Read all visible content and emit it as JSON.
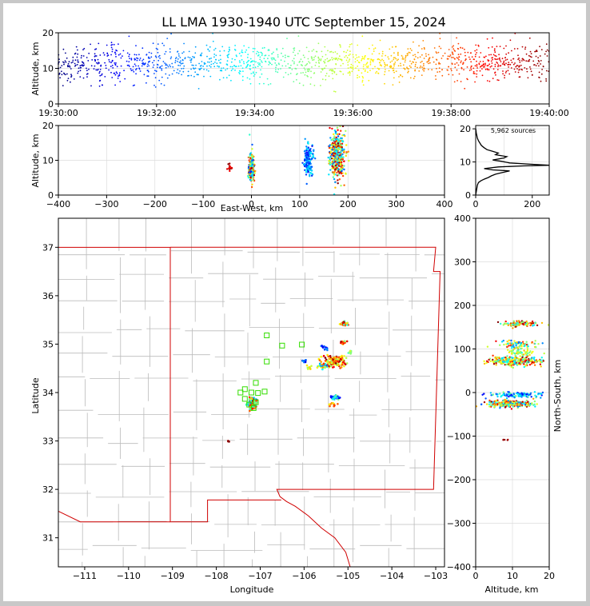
{
  "chart_data": {
    "type": "scatter",
    "title": "LL LMA 1930-1940 UTC September 15, 2024",
    "colormap": "jet (colored by time)",
    "panels": {
      "time_height": {
        "ylabel": "Altitude, km",
        "ylim": [
          0,
          20
        ],
        "yticks": [
          "0",
          "10",
          "20"
        ],
        "xlim": [
          "19:30:00",
          "19:40:00"
        ],
        "xticks": [
          "19:30:00",
          "19:32:00",
          "19:34:00",
          "19:36:00",
          "19:38:00",
          "19:40:00"
        ]
      },
      "ew_height": {
        "xlabel": "East-West, km",
        "ylabel": "Altitude, km",
        "xlim": [
          -400,
          400
        ],
        "ylim": [
          0,
          20
        ],
        "xticks": [
          "−400",
          "−300",
          "−200",
          "−100",
          "0",
          "100",
          "200",
          "300",
          "400"
        ],
        "yticks": [
          "0",
          "10",
          "20"
        ]
      },
      "histogram": {
        "annotation": "5,962 sources",
        "xlim": [
          0,
          260
        ],
        "ylim": [
          0,
          21
        ],
        "xticks": [
          "0",
          "200"
        ],
        "yticks": [
          "0",
          "10",
          "20"
        ],
        "profile": [
          [
            0,
            0
          ],
          [
            6,
            3
          ],
          [
            10,
            3.8
          ],
          [
            18,
            4.3
          ],
          [
            30,
            4.8
          ],
          [
            45,
            5.3
          ],
          [
            55,
            5.8
          ],
          [
            70,
            6.3
          ],
          [
            95,
            6.8
          ],
          [
            120,
            7.3
          ],
          [
            60,
            7.6
          ],
          [
            30,
            8
          ],
          [
            80,
            8.5
          ],
          [
            170,
            8.8
          ],
          [
            260,
            9
          ],
          [
            200,
            9.3
          ],
          [
            120,
            9.7
          ],
          [
            90,
            10.2
          ],
          [
            60,
            10.6
          ],
          [
            100,
            11.2
          ],
          [
            110,
            11.6
          ],
          [
            70,
            12.2
          ],
          [
            80,
            12.7
          ],
          [
            60,
            13.2
          ],
          [
            40,
            13.7
          ],
          [
            30,
            14.3
          ],
          [
            20,
            15
          ],
          [
            15,
            15.7
          ],
          [
            10,
            16.4
          ],
          [
            6,
            17.2
          ],
          [
            4,
            18
          ],
          [
            2,
            18.8
          ],
          [
            1,
            19.5
          ],
          [
            0,
            20
          ]
        ]
      },
      "plan_view": {
        "xlabel": "Longitude",
        "ylabel": "Latitude",
        "xlim": [
          -111.6,
          -102.8
        ],
        "ylim": [
          30.4,
          37.6
        ],
        "xticks": [
          "−111",
          "−110",
          "−109",
          "−108",
          "−107",
          "−106",
          "−105",
          "−104",
          "−103"
        ],
        "yticks": [
          "31",
          "32",
          "33",
          "34",
          "35",
          "36",
          "37"
        ],
        "stations": [
          {
            "lon": -106.85,
            "lat": 35.18
          },
          {
            "lon": -106.5,
            "lat": 34.97
          },
          {
            "lon": -106.05,
            "lat": 34.99
          },
          {
            "lon": -106.85,
            "lat": 34.64
          },
          {
            "lon": -107.1,
            "lat": 34.2
          },
          {
            "lon": -107.35,
            "lat": 34.07
          },
          {
            "lon": -107.45,
            "lat": 34.0
          },
          {
            "lon": -107.2,
            "lat": 34.0
          },
          {
            "lon": -107.05,
            "lat": 33.99
          },
          {
            "lon": -106.9,
            "lat": 34.02
          },
          {
            "lon": -107.35,
            "lat": 33.87
          },
          {
            "lon": -107.1,
            "lat": 33.8
          },
          {
            "lon": -107.25,
            "lat": 33.75
          },
          {
            "lon": -107.15,
            "lat": 33.68
          }
        ],
        "clusters": [
          {
            "lon": -107.18,
            "lat": 33.77,
            "note": "main cluster"
          },
          {
            "lon": -105.1,
            "lat": 35.42
          },
          {
            "lon": -105.1,
            "lat": 35.03
          },
          {
            "lon": -105.3,
            "lat": 34.65
          },
          {
            "lon": -105.6,
            "lat": 34.6
          },
          {
            "lon": -105.3,
            "lat": 33.9
          },
          {
            "lon": -105.3,
            "lat": 33.75
          },
          {
            "lon": -107.72,
            "lat": 33.0
          }
        ]
      },
      "ns_height": {
        "xlabel": "Altitude, km",
        "ylabel": "North-South, km",
        "xlim": [
          0,
          20
        ],
        "ylim": [
          -400,
          400
        ],
        "xticks": [
          "0",
          "10",
          "20"
        ],
        "yticks": [
          "−400",
          "−300",
          "−200",
          "−100",
          "0",
          "100",
          "200",
          "300",
          "400"
        ]
      }
    }
  }
}
